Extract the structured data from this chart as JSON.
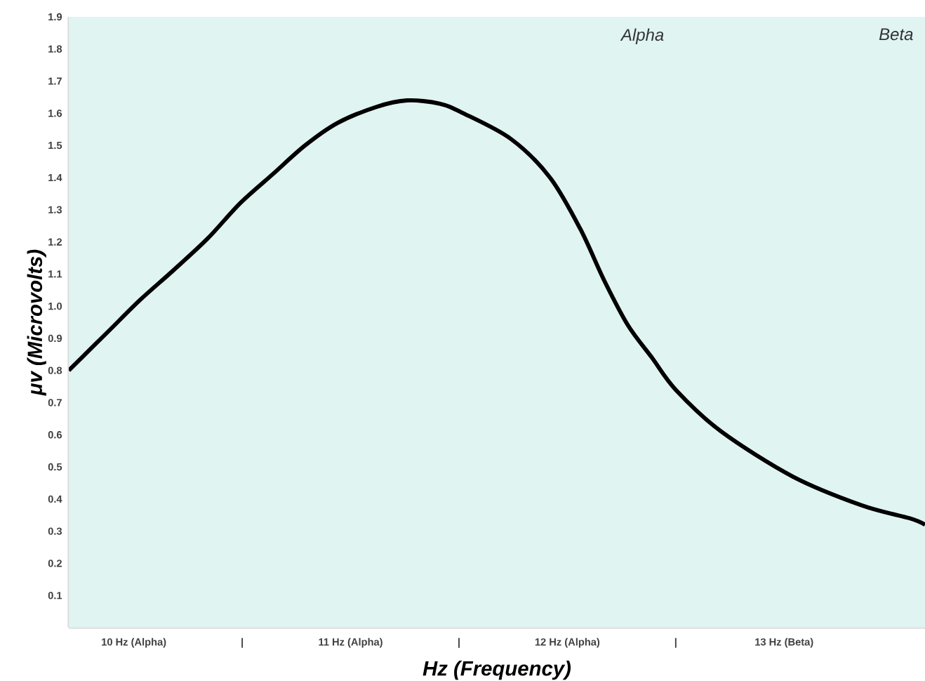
{
  "chart_data": {
    "type": "line",
    "xlabel": "Hz (Frequency)",
    "ylabel": "μv (Microvolts)",
    "xlim": [
      9.7,
      13.65
    ],
    "xticks": [
      {
        "value": 10,
        "label": "10 Hz (Alpha)"
      },
      {
        "value": 10.5,
        "label": "|"
      },
      {
        "value": 11,
        "label": "11 Hz (Alpha)"
      },
      {
        "value": 11.5,
        "label": "|"
      },
      {
        "value": 12,
        "label": "12 Hz (Alpha)"
      },
      {
        "value": 12.5,
        "label": "|"
      },
      {
        "value": 13,
        "label": "13 Hz (Beta)"
      }
    ],
    "ylim": [
      0,
      1.9
    ],
    "yticks": [
      0.1,
      0.2,
      0.3,
      0.4,
      0.5,
      0.6,
      0.7,
      0.8,
      0.9,
      {
        "value": 1.0,
        "label": "1.0"
      },
      1.1,
      1.2,
      1.3,
      1.4,
      1.5,
      1.6,
      1.7,
      1.8,
      1.9
    ],
    "series": [
      {
        "color": "#000000",
        "x": [
          9.7,
          9.88,
          10.03,
          10.18,
          10.34,
          10.49,
          10.64,
          10.79,
          10.94,
          11.12,
          11.26,
          11.41,
          11.52,
          11.74,
          11.92,
          12.06,
          12.17,
          12.28,
          12.39,
          12.5,
          12.71,
          13.04,
          13.36,
          13.58,
          13.65
        ],
        "values": [
          0.8,
          0.92,
          1.02,
          1.11,
          1.21,
          1.32,
          1.41,
          1.5,
          1.57,
          1.62,
          1.64,
          1.63,
          1.6,
          1.52,
          1.4,
          1.24,
          1.08,
          0.94,
          0.84,
          0.74,
          0.61,
          0.47,
          0.38,
          0.34,
          0.32
        ]
      }
    ],
    "bands": [
      {
        "axis": "x",
        "from": 9.7,
        "to": 12.5,
        "label": "Alpha",
        "color": "#e0f4f2"
      },
      {
        "axis": "x",
        "from": 12.5,
        "to": 13.65,
        "label": "Beta",
        "color": "#e0f4f2"
      }
    ],
    "grid": false,
    "marker": "none",
    "line_style": "solid"
  }
}
